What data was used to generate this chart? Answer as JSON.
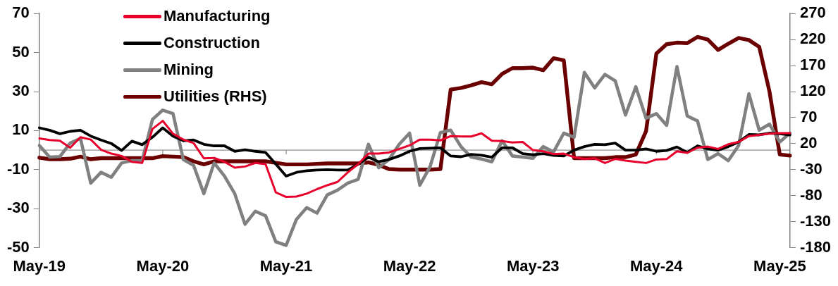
{
  "chart_data": {
    "type": "line",
    "categories": [
      "May-19",
      null,
      null,
      null,
      null,
      null,
      null,
      null,
      null,
      null,
      null,
      null,
      "May-20",
      null,
      null,
      null,
      null,
      null,
      null,
      null,
      null,
      null,
      null,
      null,
      "May-21",
      null,
      null,
      null,
      null,
      null,
      null,
      null,
      null,
      null,
      null,
      null,
      "May-22",
      null,
      null,
      null,
      null,
      null,
      null,
      null,
      null,
      null,
      null,
      null,
      "May-23",
      null,
      null,
      null,
      null,
      null,
      null,
      null,
      null,
      null,
      null,
      null,
      "May-24",
      null,
      null,
      null,
      null,
      null,
      null,
      null,
      null,
      null,
      null,
      null,
      "May-25",
      null
    ],
    "series": [
      {
        "name": "Manufacturing",
        "color": "#e8002d",
        "values": [
          6,
          5.2,
          4.8,
          1.2,
          6.6,
          5.4,
          0.2,
          -1.8,
          -3,
          -6,
          -6.6,
          10.8,
          15,
          8.4,
          5.4,
          3.6,
          -4.2,
          -4,
          -6,
          -9,
          -8.4,
          -6.6,
          -7.2,
          -21.7,
          -24,
          -23.8,
          -22.3,
          -20,
          -18,
          -16.3,
          -11.4,
          -7.2,
          -1.8,
          -1.8,
          -1.2,
          0.6,
          2.4,
          5.4,
          5.4,
          5,
          7.2,
          7,
          7,
          8.6,
          4.8,
          4.6,
          3.9,
          4.2,
          0,
          -0.6,
          -2,
          -1.8,
          -3.6,
          -4.6,
          -4.2,
          -6.6,
          -4.5,
          -5.4,
          -6,
          -6.6,
          -4.8,
          -4.6,
          -0.6,
          -1.4,
          1.2,
          1.8,
          0.6,
          3,
          4.2,
          7.2,
          7.8,
          8.4,
          8.7,
          8.7
        ]
      },
      {
        "name": "Construction",
        "color": "#000000",
        "values": [
          11.4,
          10.2,
          8.4,
          9.6,
          10.2,
          7.2,
          5.2,
          3.4,
          -0.2,
          4.6,
          2.8,
          6.6,
          11.4,
          7.2,
          4.8,
          5.2,
          3,
          2.2,
          2.2,
          -0.6,
          0.2,
          -0.6,
          -1.2,
          -7.2,
          -13.3,
          -11.4,
          -10.6,
          -10.2,
          -10,
          -10.2,
          -10.2,
          -7.2,
          -3.6,
          -6,
          -4.8,
          -3,
          -0.6,
          0.8,
          1,
          1.2,
          -3,
          -3.4,
          -2.2,
          -2.6,
          -3.6,
          1.2,
          1.2,
          -1.8,
          -2.4,
          -1.8,
          -2.7,
          -3,
          0,
          1.8,
          3,
          2.8,
          3.6,
          0,
          0,
          0.6,
          -0.6,
          -0.2,
          1.6,
          -1.2,
          2.2,
          0.6,
          0,
          1.8,
          4.2,
          8,
          7.8,
          8.7,
          8.4,
          7.8
        ]
      },
      {
        "name": "Mining",
        "color": "#808080",
        "values": [
          2.4,
          -3.6,
          -3.3,
          3.6,
          6,
          -16.9,
          -11.4,
          -13.9,
          -6.6,
          -5.4,
          -5.4,
          15.7,
          20.5,
          18.7,
          -4.8,
          -7.8,
          -22.3,
          -6.6,
          -13.3,
          -22.3,
          -38,
          -31.3,
          -33.7,
          -47,
          -48.8,
          -35.5,
          -29.5,
          -32.3,
          -22.9,
          -20.5,
          -16.9,
          -15,
          3,
          -9,
          -4.8,
          3,
          8.7,
          -18,
          -8.4,
          9,
          10.2,
          1.8,
          -3.6,
          -4.6,
          -6,
          4.8,
          -3,
          -3.6,
          -4.2,
          1.8,
          -1,
          8.7,
          6.6,
          39.8,
          31.9,
          38.8,
          35.5,
          18,
          32.5,
          16.3,
          18.7,
          12.7,
          42.8,
          17.5,
          15,
          -4.8,
          -1.8,
          -5.4,
          2.4,
          28.9,
          10.2,
          13.3,
          4.2,
          8.7
        ]
      },
      {
        "name": "Utilities (RHS)",
        "color": "#6b0000",
        "axis": "y2",
        "values": [
          -7,
          -10,
          -10,
          -9,
          -5,
          -10,
          -8,
          -8,
          -8,
          -8,
          -8,
          -8,
          -4,
          -5,
          -6,
          -14,
          -20,
          -14,
          -14,
          -14,
          -14,
          -14,
          -14,
          -17,
          -20,
          -20,
          -20,
          -19,
          -18,
          -18,
          -18,
          -18,
          -16,
          -21,
          -29,
          -30,
          -30,
          -30,
          -30,
          -29,
          124,
          127,
          132,
          138,
          134,
          154,
          165,
          165,
          166,
          161,
          184,
          180,
          -8,
          -8,
          -8,
          -8,
          -6,
          -6,
          -1,
          44,
          193,
          211,
          214,
          213,
          225,
          220,
          200,
          212,
          223,
          219,
          206,
          120,
          -1,
          -3
        ]
      }
    ],
    "ylim": [
      -50,
      70
    ],
    "yticks": [
      -50,
      -30,
      -10,
      10,
      30,
      50,
      70
    ],
    "y2lim": [
      -180,
      270
    ],
    "y2ticks": [
      -180,
      -130,
      -80,
      -30,
      20,
      70,
      120,
      170,
      220,
      270
    ],
    "legend": "top left",
    "grid": false,
    "marker": "none",
    "line_style": "solid"
  }
}
